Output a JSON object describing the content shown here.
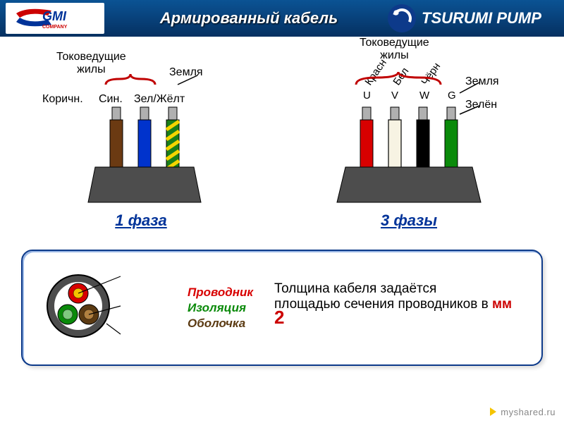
{
  "header": {
    "title": "Армированный кабель",
    "gmi_text_top": "GMI",
    "gmi_text_bottom": "COMPANY",
    "tsurumi": "TSURUMI PUMP",
    "bg_gradient_top": "#0b5394",
    "bg_gradient_bottom": "#053061"
  },
  "phase1": {
    "title": "1 фаза",
    "group_label": "Токоведущие\nжилы",
    "earth_label": "Земля",
    "wires": [
      {
        "label": "Коричн.",
        "fill": "#6b3a12",
        "stripe": null,
        "tip": "#b0b0b0"
      },
      {
        "label": "Син.",
        "fill": "#0033cc",
        "stripe": null,
        "tip": "#b0b0b0"
      },
      {
        "label": "Зел/Жёлт",
        "fill": "#1a7f1a",
        "stripe": "#f5d400",
        "tip": "#b0b0b0"
      }
    ],
    "jacket_color": "#4d4d4d",
    "brace_color": "#c00000"
  },
  "phase3": {
    "title": "3 фазы",
    "group_label": "Токоведущие\nжилы",
    "earth_label": "Земля",
    "earth_color_label": "Зелён",
    "phase_letters": [
      "U",
      "V",
      "W",
      "G"
    ],
    "wires": [
      {
        "label": "Красн",
        "fill": "#d80000",
        "stripe": null,
        "tip": "#b0b0b0"
      },
      {
        "label": "Бел",
        "fill": "#f7f3e3",
        "stripe": null,
        "tip": "#b0b0b0"
      },
      {
        "label": "Чёрн",
        "fill": "#000000",
        "stripe": null,
        "tip": "#b0b0b0"
      },
      {
        "label": "",
        "fill": "#0a8a0a",
        "stripe": null,
        "tip": "#b0b0b0"
      }
    ],
    "jacket_color": "#4d4d4d",
    "brace_color": "#c00000"
  },
  "cross_section": {
    "outer": "#4d4d4d",
    "inner_bg": "#ffffff",
    "cores": [
      {
        "ring": "#d80000",
        "fill": "#f5c400"
      },
      {
        "ring": "#0a8a0a",
        "fill": "#7fc97f"
      },
      {
        "ring": "#5b3a12",
        "fill": "#b08040"
      }
    ],
    "legend": [
      {
        "text": "Проводник",
        "color": "#d80000"
      },
      {
        "text": "Изоляция",
        "color": "#0a8a0a"
      },
      {
        "text": "Оболочка",
        "color": "#5b3a12"
      }
    ]
  },
  "thickness": {
    "line1": "Толщина кабеля задаётся",
    "line2_a": "площадью сечения проводников в ",
    "unit": "мм",
    "exp": "2"
  },
  "watermark": "myshared.ru"
}
